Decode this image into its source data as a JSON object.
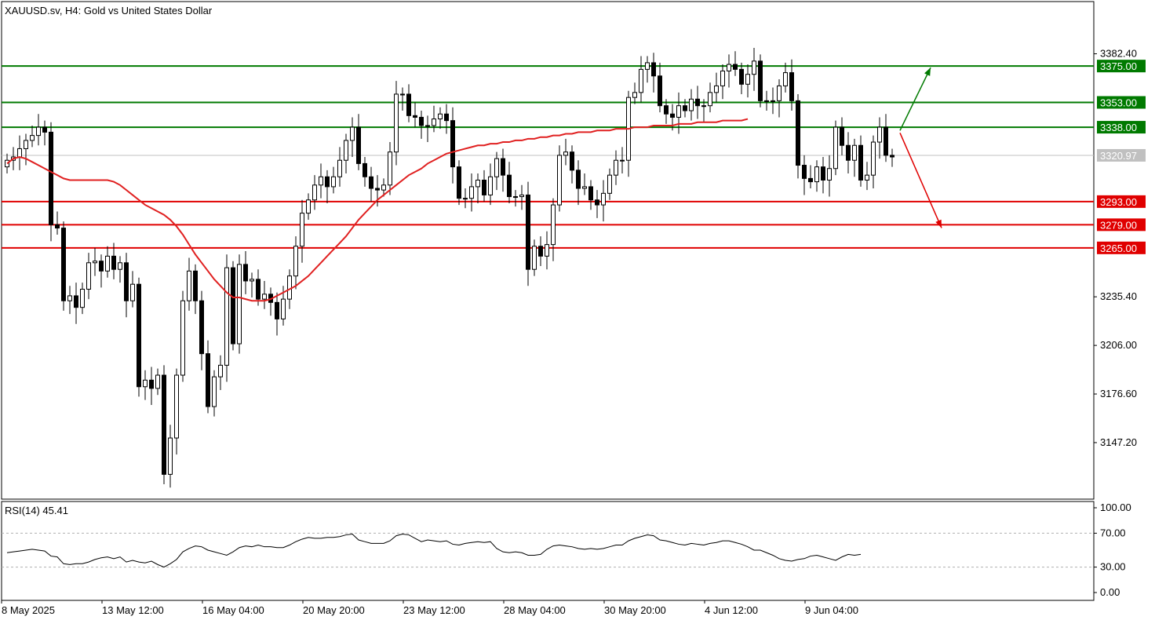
{
  "chart_data": {
    "type": "candlestick",
    "title": "XAUUSD.sv, H4:  Gold vs United States Dollar",
    "y_ticks": [
      "3382.40",
      "3235.40",
      "3206.00",
      "3176.60",
      "3147.20"
    ],
    "ylim": [
      3113,
      3414
    ],
    "current_price": "3320.97",
    "x_ticks": [
      "8 May 2025",
      "13 May 12:00",
      "16 May 04:00",
      "20 May 20:00",
      "23 May 12:00",
      "28 May 04:00",
      "30 May 20:00",
      "4 Jun 12:00",
      "9 Jun 04:00"
    ],
    "resistance_levels": [
      {
        "value": 3375.0,
        "label": "3375.00"
      },
      {
        "value": 3353.0,
        "label": "3353.00"
      },
      {
        "value": 3338.0,
        "label": "3338.00"
      }
    ],
    "support_levels": [
      {
        "value": 3293.0,
        "label": "3293.00"
      },
      {
        "value": 3279.0,
        "label": "3279.00"
      },
      {
        "value": 3265.0,
        "label": "3265.00"
      }
    ],
    "closes": [
      3318,
      3320,
      3325,
      3330,
      3333,
      3338,
      3335,
      3279,
      3277,
      3233,
      3236,
      3229,
      3240,
      3256,
      3257,
      3251,
      3260,
      3252,
      3256,
      3233,
      3243,
      3181,
      3185,
      3180,
      3188,
      3128,
      3150,
      3188,
      3233,
      3251,
      3233,
      3201,
      3169,
      3187,
      3194,
      3253,
      3207,
      3255,
      3245,
      3246,
      3234,
      3237,
      3232,
      3222,
      3234,
      3248,
      3266,
      3286,
      3294,
      3303,
      3308,
      3302,
      3308,
      3318,
      3330,
      3338,
      3316,
      3308,
      3301,
      3300,
      3303,
      3323,
      3358,
      3358,
      3345,
      3344,
      3339,
      3339,
      3343,
      3346,
      3342,
      3314,
      3295,
      3295,
      3302,
      3306,
      3297,
      3308,
      3319,
      3309,
      3296,
      3296,
      3297,
      3252,
      3266,
      3260,
      3267,
      3291,
      3321,
      3323,
      3312,
      3301,
      3302,
      3294,
      3291,
      3298,
      3309,
      3318,
      3318,
      3356,
      3359,
      3373,
      3377,
      3369,
      3351,
      3346,
      3344,
      3351,
      3348,
      3355,
      3351,
      3351,
      3359,
      3363,
      3372,
      3376,
      3373,
      3364,
      3370,
      3378,
      3354,
      3354,
      3354,
      3363,
      3371,
      3354,
      3315,
      3307,
      3305,
      3314,
      3306,
      3313,
      3338,
      3327,
      3318,
      3327,
      3306,
      3309,
      3329,
      3338,
      3321,
      3320
    ],
    "sma": [
      3316,
      3319,
      3320,
      3319,
      3317,
      3315,
      3313,
      3311,
      3309,
      3307,
      3306,
      3306,
      3306,
      3306,
      3306,
      3306,
      3306,
      3305,
      3303,
      3300,
      3297,
      3294,
      3291,
      3289,
      3287,
      3285,
      3282,
      3278,
      3273,
      3267,
      3261,
      3256,
      3251,
      3246,
      3242,
      3238,
      3235,
      3235,
      3234,
      3233,
      3233,
      3233,
      3234,
      3236,
      3238,
      3240,
      3242,
      3245,
      3248,
      3252,
      3256,
      3260,
      3264,
      3268,
      3272,
      3277,
      3282,
      3286,
      3290,
      3294,
      3297,
      3300,
      3303,
      3306,
      3309,
      3311,
      3313,
      3316,
      3318,
      3320,
      3322,
      3323,
      3324,
      3325,
      3326,
      3327,
      3327,
      3328,
      3328,
      3329,
      3329,
      3330,
      3330,
      3331,
      3331,
      3332,
      3332,
      3333,
      3333,
      3334,
      3334,
      3335,
      3335,
      3335,
      3336,
      3336,
      3336,
      3337,
      3337,
      3337,
      3338,
      3338,
      3338,
      3339,
      3339,
      3339,
      3339,
      3340,
      3340,
      3340,
      3341,
      3341,
      3341,
      3341,
      3342,
      3342,
      3342,
      3342,
      3343
    ],
    "rsi": {
      "label": "RSI(14) 45.41",
      "ticks": [
        "100.00",
        "70.00",
        "30.00",
        "0.00"
      ],
      "levels": [
        70,
        30
      ],
      "values": [
        47,
        48,
        49,
        50,
        51,
        50,
        49,
        43,
        42,
        34,
        33,
        34,
        34,
        36,
        39,
        41,
        42,
        40,
        42,
        36,
        38,
        36,
        35,
        37,
        33,
        30,
        34,
        39,
        48,
        52,
        55,
        54,
        50,
        48,
        46,
        44,
        48,
        53,
        55,
        54,
        56,
        54,
        54,
        53,
        53,
        56,
        60,
        63,
        65,
        64,
        64,
        65,
        65,
        66,
        68,
        69,
        62,
        60,
        58,
        58,
        58,
        61,
        67,
        69,
        68,
        64,
        60,
        62,
        61,
        60,
        61,
        57,
        56,
        58,
        59,
        60,
        59,
        60,
        52,
        48,
        47,
        48,
        47,
        44,
        44,
        45,
        51,
        55,
        56,
        55,
        54,
        52,
        51,
        52,
        51,
        52,
        54,
        56,
        56,
        61,
        64,
        66,
        68,
        67,
        62,
        61,
        59,
        57,
        56,
        58,
        57,
        56,
        58,
        59,
        61,
        61,
        59,
        57,
        54,
        50,
        50,
        47,
        44,
        40,
        38,
        37,
        39,
        40,
        43,
        44,
        42,
        40,
        38,
        42,
        45,
        44,
        45
      ]
    },
    "colors": {
      "resistance": "#007a00",
      "support": "#e00000",
      "sma": "#e02020",
      "candle": "#000000",
      "current_price": "#c0c0c0"
    },
    "grid": false
  }
}
